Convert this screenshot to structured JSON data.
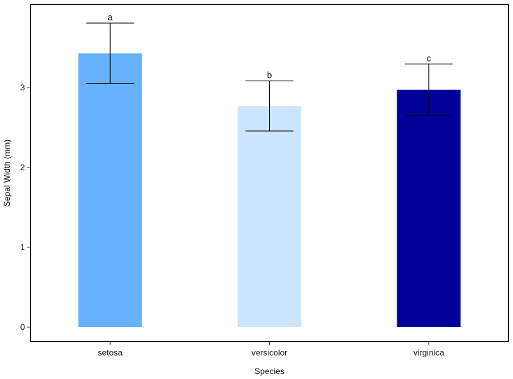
{
  "chart_data": {
    "type": "bar",
    "title": "",
    "xlabel": "Species",
    "ylabel": "Sepal Width (mm)",
    "categories": [
      "setosa",
      "versicolor",
      "virginica"
    ],
    "values": [
      3.428,
      2.77,
      2.974
    ],
    "error_sd": [
      0.379,
      0.314,
      0.322
    ],
    "significance_labels": [
      "a",
      "b",
      "c"
    ],
    "bar_colors": [
      "#66b2ff",
      "#cce5ff",
      "#000099"
    ],
    "ylim": [
      -0.18,
      4.04
    ],
    "yticks": [
      0,
      1,
      2,
      3
    ],
    "grid": false,
    "legend": "none"
  }
}
